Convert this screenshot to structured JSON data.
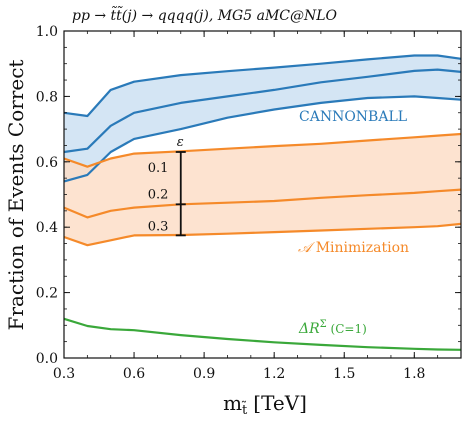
{
  "chart_data": {
    "type": "line",
    "title": "pp → t̃t̃(j) → qqqq(j), MG5 aMC@NLO",
    "xlabel": "m",
    "xlabel_sub": "t̃",
    "xlabel_unit": "[TeV]",
    "ylabel": "Fraction of Events Correct",
    "xlim": [
      0.3,
      2.0
    ],
    "ylim": [
      0.0,
      1.0
    ],
    "xticks": [
      "0.3",
      "0.6",
      "0.9",
      "1.2",
      "1.5",
      "1.8"
    ],
    "yticks": [
      "0.0",
      "0.2",
      "0.4",
      "0.6",
      "0.8",
      "1.0"
    ],
    "colors": {
      "cannonball": "#2a7ab9",
      "aminim": "#f58a2a",
      "deltar": "#3aa83a"
    },
    "x": [
      0.3,
      0.4,
      0.5,
      0.6,
      0.8,
      1.0,
      1.2,
      1.4,
      1.6,
      1.8,
      1.9,
      2.0
    ],
    "series": [
      {
        "name": "CANNONBALL",
        "band": "upper",
        "values": [
          0.75,
          0.74,
          0.82,
          0.845,
          0.865,
          0.877,
          0.888,
          0.9,
          0.913,
          0.925,
          0.925,
          0.915
        ]
      },
      {
        "name": "CANNONBALL",
        "band": "middle",
        "values": [
          0.63,
          0.64,
          0.71,
          0.75,
          0.78,
          0.8,
          0.82,
          0.843,
          0.86,
          0.878,
          0.882,
          0.875
        ]
      },
      {
        "name": "CANNONBALL",
        "band": "lower",
        "values": [
          0.54,
          0.56,
          0.63,
          0.67,
          0.7,
          0.735,
          0.76,
          0.78,
          0.795,
          0.8,
          0.795,
          0.79
        ]
      },
      {
        "name": "A Minimization",
        "band": "upper",
        "values": [
          0.61,
          0.585,
          0.61,
          0.625,
          0.632,
          0.64,
          0.648,
          0.655,
          0.665,
          0.675,
          0.68,
          0.685
        ]
      },
      {
        "name": "A Minimization",
        "band": "middle",
        "values": [
          0.46,
          0.43,
          0.45,
          0.46,
          0.47,
          0.475,
          0.48,
          0.49,
          0.498,
          0.505,
          0.51,
          0.515
        ]
      },
      {
        "name": "A Minimization",
        "band": "lower",
        "values": [
          0.37,
          0.345,
          0.36,
          0.375,
          0.376,
          0.38,
          0.385,
          0.39,
          0.395,
          0.4,
          0.403,
          0.41
        ]
      },
      {
        "name": "ΔR^Σ (C=1)",
        "band": "single",
        "values": [
          0.12,
          0.098,
          0.088,
          0.085,
          0.07,
          0.058,
          0.048,
          0.04,
          0.033,
          0.028,
          0.026,
          0.025
        ]
      }
    ],
    "annotations": {
      "cannonball": "CANNONBALL",
      "aminim_symbol": "𝒜",
      "aminim": " Minimization",
      "deltar_symbol": "ΔR",
      "deltar_sup": "Σ",
      "deltar_rest": " (C=1)",
      "epsilon": "ε",
      "eps_levels": [
        {
          "label": "0.1",
          "y": 0.63
        },
        {
          "label": "0.2",
          "y": 0.47
        },
        {
          "label": "0.3",
          "y": 0.375
        }
      ],
      "eps_x": 0.8
    },
    "grid": false,
    "legend": "inline"
  }
}
